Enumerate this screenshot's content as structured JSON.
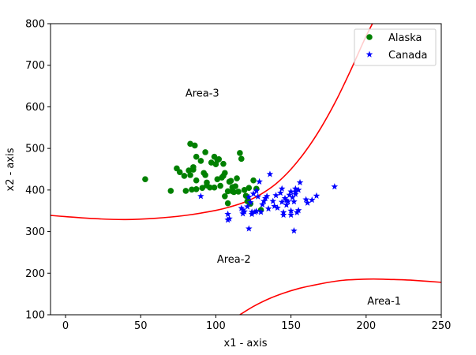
{
  "chart_data": {
    "type": "scatter",
    "title": "",
    "xlabel": "x1 - axis",
    "ylabel": "x2 - axis",
    "xlim": [
      -10,
      250
    ],
    "ylim": [
      100,
      800
    ],
    "xticks": [
      "0",
      "50",
      "100",
      "150",
      "200",
      "250"
    ],
    "xtick_values": [
      0,
      50,
      100,
      150,
      200,
      250
    ],
    "yticks": [
      "100",
      "200",
      "300",
      "400",
      "500",
      "600",
      "700",
      "800"
    ],
    "ytick_values": [
      100,
      200,
      300,
      400,
      500,
      600,
      700,
      800
    ],
    "grid": false,
    "legend_position": "top-right",
    "series": [
      {
        "name": "Alaska",
        "marker": "circle",
        "color": "#008000",
        "points": [
          [
            53,
            426
          ],
          [
            70,
            398
          ],
          [
            74,
            452
          ],
          [
            76,
            443
          ],
          [
            79,
            434
          ],
          [
            80,
            398
          ],
          [
            82,
            447
          ],
          [
            83,
            436
          ],
          [
            83,
            511
          ],
          [
            84,
            401
          ],
          [
            85,
            455
          ],
          [
            85,
            449
          ],
          [
            86,
            507
          ],
          [
            87,
            480
          ],
          [
            87,
            423
          ],
          [
            87,
            402
          ],
          [
            90,
            470
          ],
          [
            91,
            405
          ],
          [
            92,
            441
          ],
          [
            93,
            491
          ],
          [
            93,
            436
          ],
          [
            94,
            418
          ],
          [
            94,
            411
          ],
          [
            96,
            406
          ],
          [
            97,
            466
          ],
          [
            99,
            406
          ],
          [
            99,
            480
          ],
          [
            100,
            462
          ],
          [
            101,
            472
          ],
          [
            101,
            426
          ],
          [
            102,
            474
          ],
          [
            103,
            410
          ],
          [
            104,
            430
          ],
          [
            105,
            463
          ],
          [
            105,
            434
          ],
          [
            106,
            441
          ],
          [
            106,
            385
          ],
          [
            108,
            368
          ],
          [
            108,
            397
          ],
          [
            109,
            420
          ],
          [
            110,
            422
          ],
          [
            111,
            407
          ],
          [
            112,
            395
          ],
          [
            113,
            409
          ],
          [
            114,
            428
          ],
          [
            115,
            396
          ],
          [
            116,
            489
          ],
          [
            117,
            475
          ],
          [
            119,
            400
          ],
          [
            120,
            386
          ],
          [
            121,
            373
          ],
          [
            122,
            405
          ],
          [
            123,
            367
          ],
          [
            125,
            423
          ],
          [
            127,
            403
          ],
          [
            130,
            352
          ],
          [
            111,
            397
          ]
        ]
      },
      {
        "name": "Canada",
        "marker": "star",
        "color": "#0000ff",
        "points": [
          [
            90,
            385
          ],
          [
            108,
            342
          ],
          [
            108,
            328
          ],
          [
            109,
            331
          ],
          [
            117,
            356
          ],
          [
            118,
            352
          ],
          [
            118,
            343
          ],
          [
            119,
            348
          ],
          [
            121,
            360
          ],
          [
            122,
            383
          ],
          [
            122,
            307
          ],
          [
            123,
            370
          ],
          [
            124,
            347
          ],
          [
            124,
            342
          ],
          [
            125,
            391
          ],
          [
            126,
            347
          ],
          [
            127,
            349
          ],
          [
            127,
            398
          ],
          [
            128,
            384
          ],
          [
            129,
            420
          ],
          [
            130,
            347
          ],
          [
            131,
            365
          ],
          [
            132,
            373
          ],
          [
            133,
            380
          ],
          [
            134,
            385
          ],
          [
            135,
            355
          ],
          [
            136,
            438
          ],
          [
            138,
            373
          ],
          [
            139,
            361
          ],
          [
            140,
            387
          ],
          [
            141,
            357
          ],
          [
            143,
            393
          ],
          [
            144,
            371
          ],
          [
            144,
            403
          ],
          [
            145,
            346
          ],
          [
            145,
            340
          ],
          [
            146,
            380
          ],
          [
            147,
            375
          ],
          [
            147,
            364
          ],
          [
            148,
            372
          ],
          [
            149,
            388
          ],
          [
            150,
            350
          ],
          [
            150,
            340
          ],
          [
            150,
            396
          ],
          [
            151,
            382
          ],
          [
            152,
            302
          ],
          [
            152,
            372
          ],
          [
            153,
            403
          ],
          [
            153,
            395
          ],
          [
            154,
            346
          ],
          [
            155,
            400
          ],
          [
            155,
            351
          ],
          [
            156,
            418
          ],
          [
            160,
            377
          ],
          [
            161,
            369
          ],
          [
            164,
            376
          ],
          [
            167,
            386
          ],
          [
            179,
            408
          ],
          [
            153,
            390
          ]
        ]
      }
    ],
    "boundaries": [
      {
        "name": "",
        "color": "#ff0000",
        "points": [
          [
            -10,
            339
          ],
          [
            0,
            336
          ],
          [
            20,
            331
          ],
          [
            40,
            329
          ],
          [
            60,
            332
          ],
          [
            80,
            339
          ],
          [
            100,
            351
          ],
          [
            110,
            360
          ],
          [
            120,
            372
          ],
          [
            130,
            390
          ],
          [
            140,
            415
          ],
          [
            150,
            450
          ],
          [
            160,
            495
          ],
          [
            170,
            550
          ],
          [
            180,
            615
          ],
          [
            190,
            690
          ],
          [
            200,
            770
          ],
          [
            210,
            840
          ]
        ]
      },
      {
        "name": "",
        "color": "#ff0000",
        "points": [
          [
            116,
            100
          ],
          [
            125,
            120
          ],
          [
            135,
            138
          ],
          [
            145,
            152
          ],
          [
            155,
            163
          ],
          [
            165,
            171
          ],
          [
            175,
            178
          ],
          [
            185,
            183
          ],
          [
            195,
            185
          ],
          [
            205,
            186
          ],
          [
            215,
            185
          ],
          [
            225,
            184
          ],
          [
            235,
            182
          ],
          [
            250,
            178
          ]
        ]
      }
    ],
    "annotations": [
      {
        "text": "Area-3",
        "x": 91,
        "y": 625
      },
      {
        "text": "Area-2",
        "x": 112,
        "y": 225
      },
      {
        "text": "Area-1",
        "x": 212,
        "y": 125
      }
    ]
  }
}
